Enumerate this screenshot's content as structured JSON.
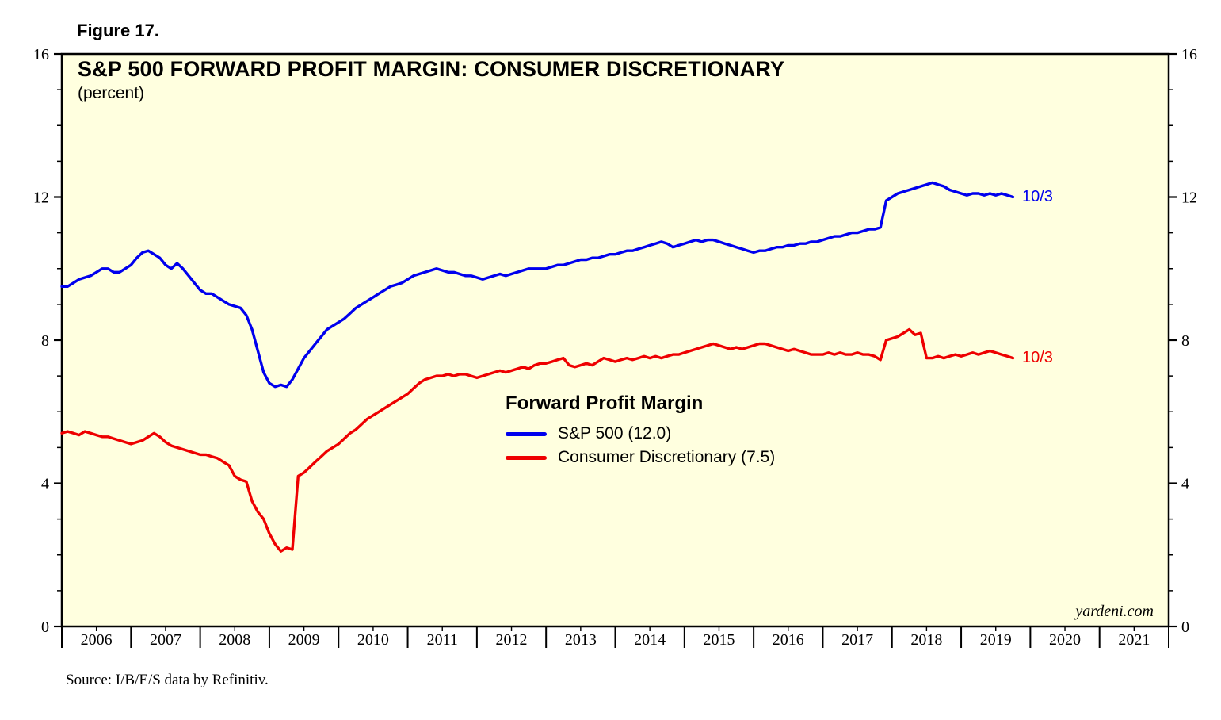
{
  "chart_data": {
    "type": "line",
    "figure_label": "Figure 17.",
    "title": "S&P 500 FORWARD PROFIT MARGIN: CONSUMER DISCRETIONARY",
    "subtitle": "(percent)",
    "watermark": "yardeni.com",
    "source": "Source: I/B/E/S data by Refinitiv.",
    "plot_bg": "#FFFFDF",
    "border_color": "#000000",
    "xlim": [
      2006,
      2022
    ],
    "ylim": [
      0,
      16
    ],
    "yticks": [
      0,
      4,
      8,
      12,
      16
    ],
    "ytick_minor_step": 1,
    "xtick_years": [
      2006,
      2007,
      2008,
      2009,
      2010,
      2011,
      2012,
      2013,
      2014,
      2015,
      2016,
      2017,
      2018,
      2019,
      2020,
      2021
    ],
    "grid": false,
    "legend": {
      "title": "Forward Profit Margin",
      "position": "center-right-inside",
      "items": [
        {
          "label": "S&P 500 (12.0)",
          "color": "#0000EE"
        },
        {
          "label": "Consumer Discretionary (7.5)",
          "color": "#EE0000"
        }
      ]
    },
    "end_labels": [
      {
        "text": "10/3",
        "color": "#0000EE",
        "y": 12.0
      },
      {
        "text": "10/3",
        "color": "#EE0000",
        "y": 7.5
      }
    ],
    "series": [
      {
        "name": "S&P 500",
        "color": "#0000EE",
        "x_start": 2006,
        "x_step": "monthly",
        "last_value": 12.0,
        "values": [
          9.5,
          9.5,
          9.6,
          9.7,
          9.75,
          9.8,
          9.9,
          10.0,
          10.0,
          9.9,
          9.9,
          10.0,
          10.1,
          10.3,
          10.45,
          10.5,
          10.4,
          10.3,
          10.1,
          10.0,
          10.15,
          10.0,
          9.8,
          9.6,
          9.4,
          9.3,
          9.3,
          9.2,
          9.1,
          9.0,
          8.95,
          8.9,
          8.7,
          8.3,
          7.7,
          7.1,
          6.8,
          6.7,
          6.75,
          6.7,
          6.9,
          7.2,
          7.5,
          7.7,
          7.9,
          8.1,
          8.3,
          8.4,
          8.5,
          8.6,
          8.75,
          8.9,
          9.0,
          9.1,
          9.2,
          9.3,
          9.4,
          9.5,
          9.55,
          9.6,
          9.7,
          9.8,
          9.85,
          9.9,
          9.95,
          10.0,
          9.95,
          9.9,
          9.9,
          9.85,
          9.8,
          9.8,
          9.75,
          9.7,
          9.75,
          9.8,
          9.85,
          9.8,
          9.85,
          9.9,
          9.95,
          10.0,
          10.0,
          10.0,
          10.0,
          10.05,
          10.1,
          10.1,
          10.15,
          10.2,
          10.25,
          10.25,
          10.3,
          10.3,
          10.35,
          10.4,
          10.4,
          10.45,
          10.5,
          10.5,
          10.55,
          10.6,
          10.65,
          10.7,
          10.75,
          10.7,
          10.6,
          10.65,
          10.7,
          10.75,
          10.8,
          10.75,
          10.8,
          10.8,
          10.75,
          10.7,
          10.65,
          10.6,
          10.55,
          10.5,
          10.45,
          10.5,
          10.5,
          10.55,
          10.6,
          10.6,
          10.65,
          10.65,
          10.7,
          10.7,
          10.75,
          10.75,
          10.8,
          10.85,
          10.9,
          10.9,
          10.95,
          11.0,
          11.0,
          11.05,
          11.1,
          11.1,
          11.15,
          11.9,
          12.0,
          12.1,
          12.15,
          12.2,
          12.25,
          12.3,
          12.35,
          12.4,
          12.35,
          12.3,
          12.2,
          12.15,
          12.1,
          12.05,
          12.1,
          12.1,
          12.05,
          12.1,
          12.05,
          12.1,
          12.05,
          12.0
        ]
      },
      {
        "name": "Consumer Discretionary",
        "color": "#EE0000",
        "x_start": 2006,
        "x_step": "monthly",
        "last_value": 7.5,
        "values": [
          5.4,
          5.45,
          5.4,
          5.35,
          5.45,
          5.4,
          5.35,
          5.3,
          5.3,
          5.25,
          5.2,
          5.15,
          5.1,
          5.15,
          5.2,
          5.3,
          5.4,
          5.3,
          5.15,
          5.05,
          5.0,
          4.95,
          4.9,
          4.85,
          4.8,
          4.8,
          4.75,
          4.7,
          4.6,
          4.5,
          4.2,
          4.1,
          4.05,
          3.5,
          3.2,
          3.0,
          2.6,
          2.3,
          2.1,
          2.2,
          2.15,
          4.2,
          4.3,
          4.45,
          4.6,
          4.75,
          4.9,
          5.0,
          5.1,
          5.25,
          5.4,
          5.5,
          5.65,
          5.8,
          5.9,
          6.0,
          6.1,
          6.2,
          6.3,
          6.4,
          6.5,
          6.65,
          6.8,
          6.9,
          6.95,
          7.0,
          7.0,
          7.05,
          7.0,
          7.05,
          7.05,
          7.0,
          6.95,
          7.0,
          7.05,
          7.1,
          7.15,
          7.1,
          7.15,
          7.2,
          7.25,
          7.2,
          7.3,
          7.35,
          7.35,
          7.4,
          7.45,
          7.5,
          7.3,
          7.25,
          7.3,
          7.35,
          7.3,
          7.4,
          7.5,
          7.45,
          7.4,
          7.45,
          7.5,
          7.45,
          7.5,
          7.55,
          7.5,
          7.55,
          7.5,
          7.55,
          7.6,
          7.6,
          7.65,
          7.7,
          7.75,
          7.8,
          7.85,
          7.9,
          7.85,
          7.8,
          7.75,
          7.8,
          7.75,
          7.8,
          7.85,
          7.9,
          7.9,
          7.85,
          7.8,
          7.75,
          7.7,
          7.75,
          7.7,
          7.65,
          7.6,
          7.6,
          7.6,
          7.65,
          7.6,
          7.65,
          7.6,
          7.6,
          7.65,
          7.6,
          7.6,
          7.55,
          7.45,
          8.0,
          8.05,
          8.1,
          8.2,
          8.3,
          8.15,
          8.2,
          7.5,
          7.5,
          7.55,
          7.5,
          7.55,
          7.6,
          7.55,
          7.6,
          7.65,
          7.6,
          7.65,
          7.7,
          7.65,
          7.6,
          7.55,
          7.5
        ]
      }
    ]
  }
}
